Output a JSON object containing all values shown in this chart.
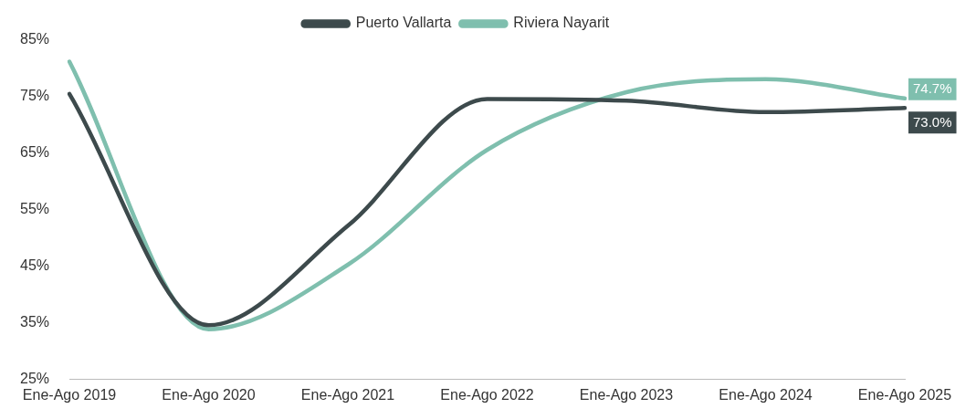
{
  "chart_data": {
    "type": "line",
    "categories": [
      "Ene-Ago 2019",
      "Ene-Ago 2020",
      "Ene-Ago 2021",
      "Ene-Ago 2022",
      "Ene-Ago 2023",
      "Ene-Ago 2024",
      "Ene-Ago 2025"
    ],
    "series": [
      {
        "name": "Puerto Vallarta",
        "color": "#3d4a4c",
        "values": [
          75.5,
          34.6,
          52.2,
          74.6,
          74.3,
          72.3,
          73.0
        ],
        "value_labels": [
          null,
          null,
          null,
          null,
          null,
          null,
          "73.0%"
        ]
      },
      {
        "name": "Riviera Nayarit",
        "color": "#7fbfae",
        "values": [
          81.2,
          33.9,
          45.3,
          65.6,
          75.8,
          78.1,
          74.7
        ],
        "value_labels": [
          null,
          null,
          null,
          null,
          null,
          null,
          "74.7%"
        ]
      }
    ],
    "ylim": [
      25,
      85
    ],
    "yticks": [
      {
        "value": 25,
        "label": "25%"
      },
      {
        "value": 35,
        "label": "35%"
      },
      {
        "value": 45,
        "label": "45%"
      },
      {
        "value": 55,
        "label": "55%"
      },
      {
        "value": 65,
        "label": "65%"
      },
      {
        "value": 75,
        "label": "75%"
      },
      {
        "value": 85,
        "label": "85%"
      }
    ],
    "grid": false,
    "legend": "top",
    "marker": "none",
    "line_style": "solid"
  }
}
